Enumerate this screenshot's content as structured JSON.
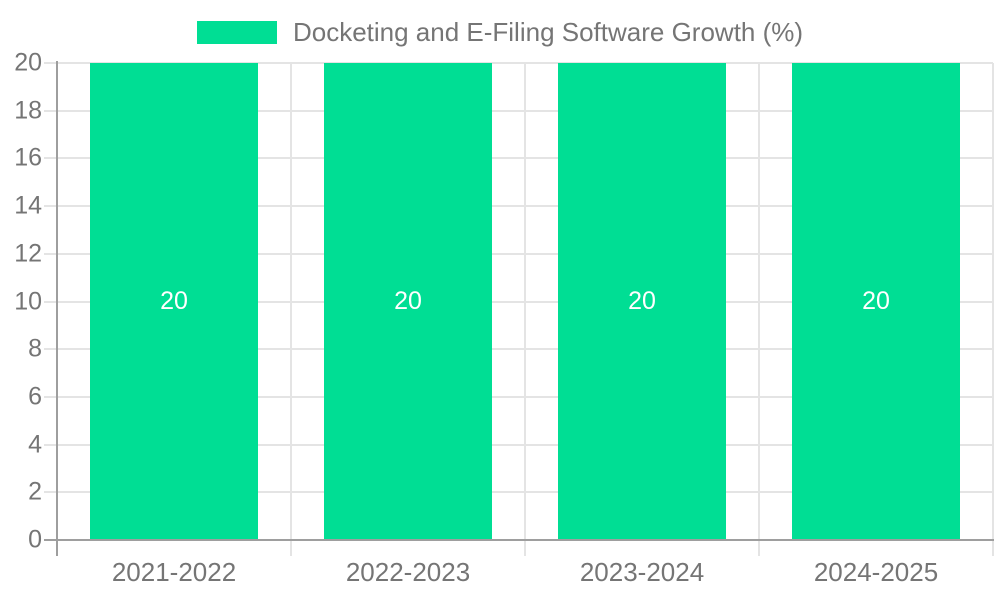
{
  "chart_data": {
    "type": "bar",
    "title": "Docketing and E-Filing Software Growth (%)",
    "legend": {
      "position": "top",
      "label": "Docketing and E-Filing Software Growth (%)"
    },
    "categories": [
      "2021-2022",
      "2022-2023",
      "2023-2024",
      "2024-2025"
    ],
    "values": [
      20,
      20,
      20,
      20
    ],
    "bar_labels": [
      "20",
      "20",
      "20",
      "20"
    ],
    "xlabel": "",
    "ylabel": "",
    "ylim": [
      0,
      20
    ],
    "yticks": [
      0,
      2,
      4,
      6,
      8,
      10,
      12,
      14,
      16,
      18,
      20
    ],
    "grid": true,
    "colors": {
      "bar": "#00DE94",
      "bar_label_text": "#ffffff",
      "axis_text": "#757575",
      "gridline": "#e4e4e4",
      "axis_line": "#9e9e9e",
      "background": "#ffffff"
    }
  }
}
